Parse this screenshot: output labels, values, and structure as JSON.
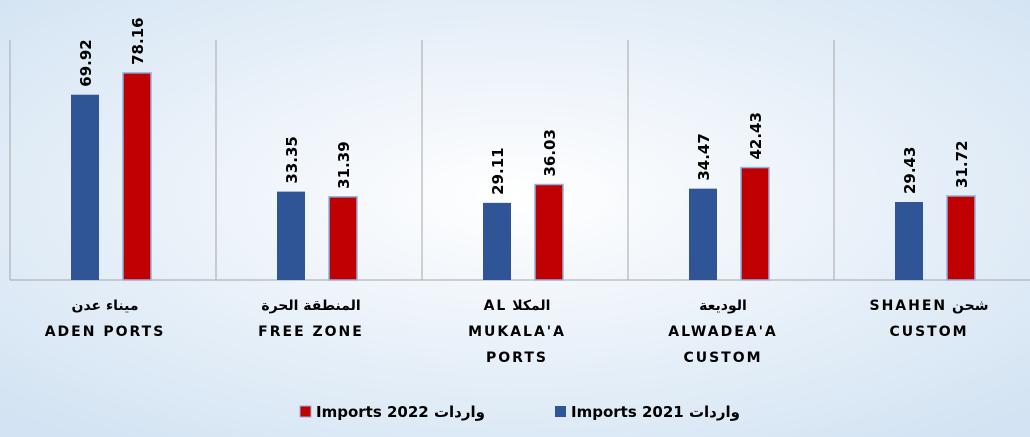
{
  "chart_data": {
    "type": "bar",
    "categories": [
      [
        "ميناء عدن",
        "ADEN PORTS"
      ],
      [
        "المنطقة الحرة",
        "FREE ZONE"
      ],
      [
        "المكلا  AL",
        "MUKALA'A",
        "PORTS"
      ],
      [
        "الوديعة",
        "ALWADEA'A",
        "CUSTOM"
      ],
      [
        "شحن    SHAHEN",
        "CUSTOM"
      ]
    ],
    "series": [
      {
        "name": "واردات 2021 Imports",
        "color": "#2f5597",
        "values": [
          69.92,
          33.35,
          29.11,
          34.47,
          29.43
        ]
      },
      {
        "name": "واردات 2022 Imports",
        "color": "#c00000",
        "values": [
          78.16,
          31.39,
          36.03,
          42.43,
          31.72
        ]
      }
    ],
    "ylim": [
      0,
      80
    ]
  }
}
